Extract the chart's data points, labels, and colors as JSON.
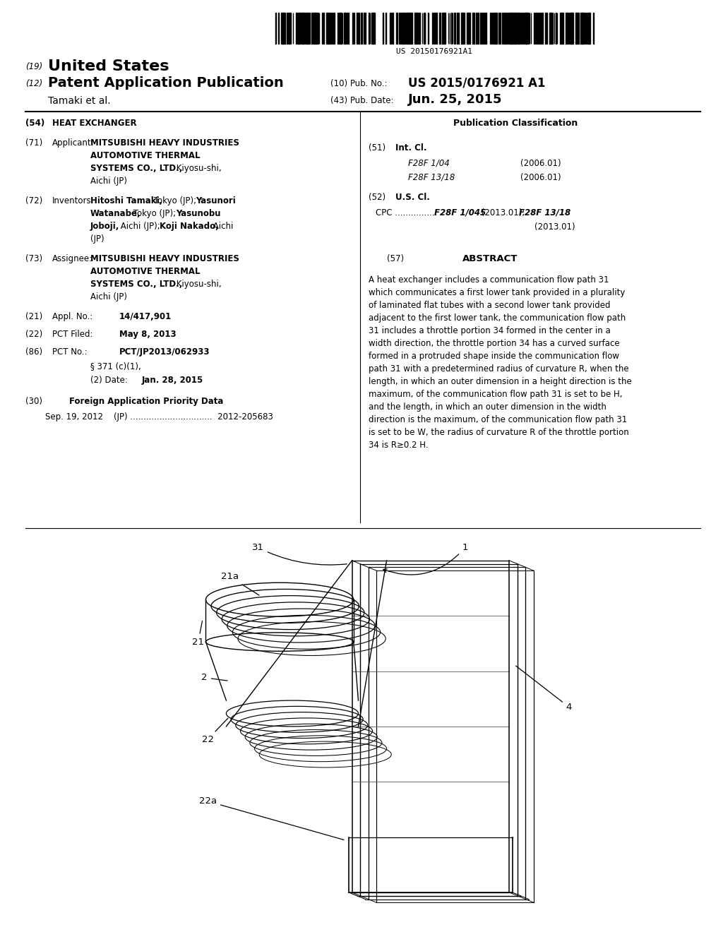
{
  "bg_color": "#ffffff",
  "barcode_text": "US 20150176921A1",
  "tag19": "(19)",
  "united_states": "United States",
  "tag12": "(12)",
  "patent_app_pub": "Patent Application Publication",
  "tag10": "(10) Pub. No.:",
  "pub_no": "US 2015/0176921 A1",
  "author": "Tamaki et al.",
  "tag43": "(43) Pub. Date:",
  "pub_date": "Jun. 25, 2015",
  "tag54": "(54)",
  "title54": "HEAT EXCHANGER",
  "tag71": "(71)",
  "tag72": "(72)",
  "tag73": "(73)",
  "tag21": "(21)",
  "appl_no": "14/417,901",
  "tag22": "(22)",
  "pct_filed": "May 8, 2013",
  "tag86": "(86)",
  "pct_no": "PCT/JP2013/062933",
  "pct_371": "§ 371 (c)(1),",
  "pct_date_label": "(2) Date:",
  "pct_date": "Jan. 28, 2015",
  "tag30": "(30)",
  "foreign_priority": "Foreign Application Priority Data",
  "foreign_app": "Sep. 19, 2012    (JP) ...............................  2012-205683",
  "pub_class_header": "Publication Classification",
  "tag51": "(51)",
  "int_cl1": "F28F 1/04",
  "int_cl1_year": "(2006.01)",
  "int_cl2": "F28F 13/18",
  "int_cl2_year": "(2006.01)",
  "tag52": "(52)",
  "cpc_line2": "(2013.01)",
  "tag57": "(57)",
  "abstract_header": "ABSTRACT",
  "abstract_lines": [
    "A heat exchanger includes a communication flow path 31",
    "which communicates a first lower tank provided in a plurality",
    "of laminated flat tubes with a second lower tank provided",
    "adjacent to the first lower tank, the communication flow path",
    "31 includes a throttle portion 34 formed in the center in a",
    "width direction, the throttle portion 34 has a curved surface",
    "formed in a protruded shape inside the communication flow",
    "path 31 with a predetermined radius of curvature R, when the",
    "length, in which an outer dimension in a height direction is the",
    "maximum, of the communication flow path 31 is set to be H,",
    "and the length, in which an outer dimension in the width",
    "direction is the maximum, of the communication flow path 31",
    "is set to be W, the radius of curvature R of the throttle portion",
    "34 is R≥0.2 H."
  ]
}
